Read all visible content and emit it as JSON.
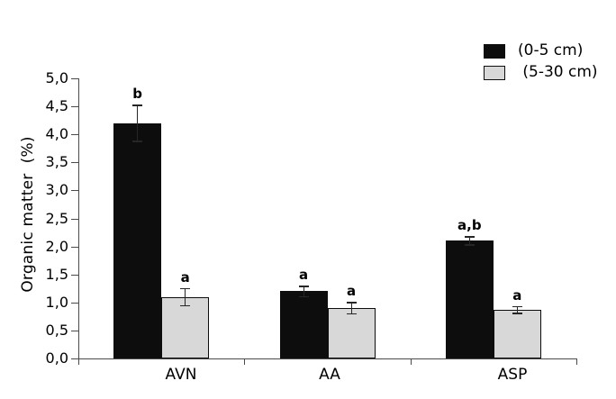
{
  "chart_data": {
    "type": "bar",
    "title": "",
    "ylabel": "Organic matter  (%)",
    "xlabel": "",
    "categories": [
      "AVN",
      "AA",
      "ASP"
    ],
    "series": [
      {
        "name": "(0-5 cm)",
        "color": "#0d0d0d",
        "values": [
          4.2,
          1.2,
          2.1
        ],
        "errors": [
          0.33,
          0.1,
          0.08
        ],
        "sig_letters": [
          "b",
          "a",
          "a,b"
        ]
      },
      {
        "name": " (5-30 cm)",
        "color": "#d8d8d8",
        "values": [
          1.1,
          0.9,
          0.87
        ],
        "errors": [
          0.16,
          0.11,
          0.07
        ],
        "sig_letters": [
          "a",
          "a",
          "a"
        ]
      }
    ],
    "ylim": [
      0,
      5
    ],
    "ytick_step": 0.5,
    "ytick_labels": [
      "0,0",
      "0,5",
      "1,0",
      "1,5",
      "2,0",
      "2,5",
      "3,0",
      "3,5",
      "4,0",
      "4,5",
      "5,0"
    ],
    "decimal_separator": "comma",
    "grid": "off",
    "legend_position": "top-right",
    "error_bars": "on",
    "axis_color": "#4a4a4a"
  }
}
